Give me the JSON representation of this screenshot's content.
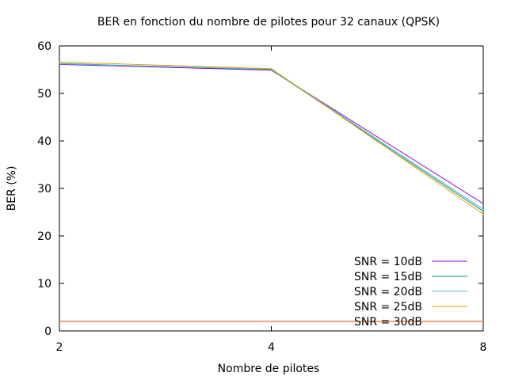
{
  "chart_data": {
    "type": "line",
    "title": "BER en fonction du nombre de pilotes pour 32 canaux (QPSK)",
    "xlabel": "Nombre de pilotes",
    "ylabel": "BER (%)",
    "x_categories": [
      "2",
      "4",
      "8"
    ],
    "ylim": [
      0,
      60
    ],
    "yticks": [
      "0",
      "10",
      "20",
      "30",
      "40",
      "50",
      "60"
    ],
    "grid": false,
    "legend_position": "bottom-right",
    "series": [
      {
        "name": "SNR = 10dB",
        "color": "#9400d3",
        "values": [
          56.1,
          54.9,
          26.8
        ]
      },
      {
        "name": "SNR = 15dB",
        "color": "#009e73",
        "values": [
          56.3,
          55.0,
          25.2
        ]
      },
      {
        "name": "SNR = 20dB",
        "color": "#56b4e9",
        "values": [
          56.2,
          55.1,
          25.6
        ]
      },
      {
        "name": "SNR = 25dB",
        "color": "#e69f00",
        "values": [
          56.6,
          55.2,
          24.6
        ]
      },
      {
        "name": "SNR = 30dB",
        "color": "#ff4500",
        "values": [
          2.0,
          2.0,
          2.0
        ]
      }
    ]
  }
}
